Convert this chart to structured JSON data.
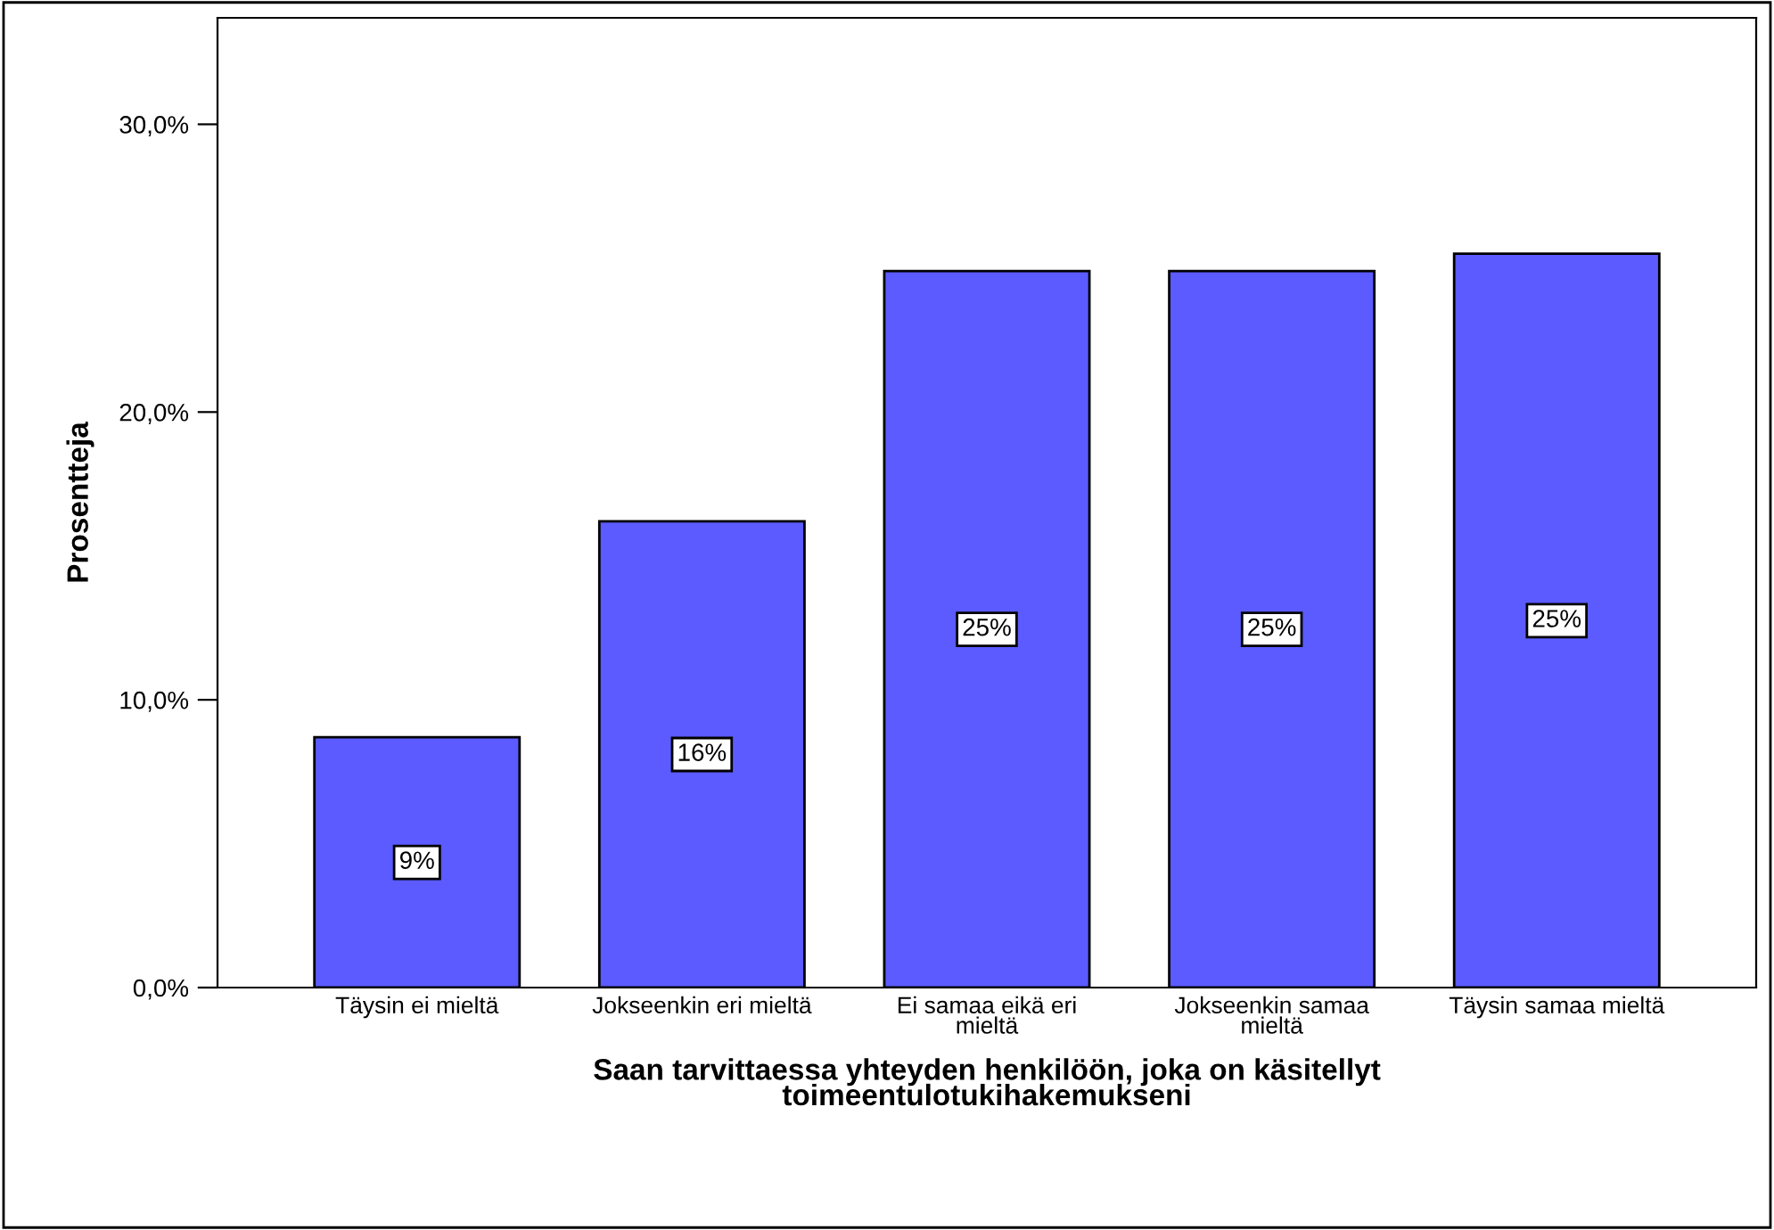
{
  "chart_data": {
    "type": "bar",
    "xlabel": "Saan tarvittaessa yhteyden henkilöön, joka on käsitellyt\ntoimeentulotukihakemukseni",
    "ylabel": "Prosentteja",
    "categories": [
      "Täysin ei mieltä",
      "Jokseenkin eri mieltä",
      "Ei samaa eikä eri\nmieltä",
      "Jokseenkin samaa\nmieltä",
      "Täysin samaa mieltä"
    ],
    "values": [
      8.7,
      16.2,
      24.9,
      24.9,
      25.5
    ],
    "value_labels": [
      "9%",
      "16%",
      "25%",
      "25%",
      "25%"
    ],
    "color": "#5b5bff",
    "ylim": [
      0,
      33.7
    ],
    "yticks": [
      {
        "value": 0,
        "label": "0,0%"
      },
      {
        "value": 10,
        "label": "10,0%"
      },
      {
        "value": 20,
        "label": "20,0%"
      },
      {
        "value": 30,
        "label": "30,0%"
      }
    ],
    "grid": false,
    "legend": false
  }
}
